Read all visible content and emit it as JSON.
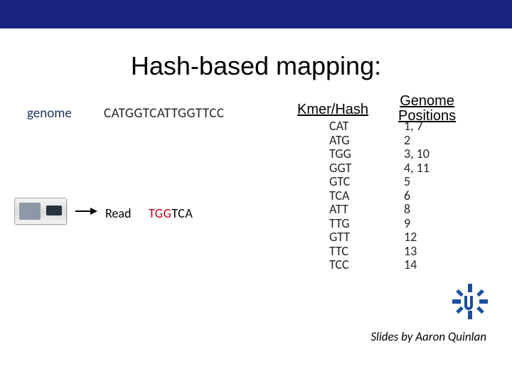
{
  "topbar_color": "#1a237e",
  "title": "Hash-based mapping:",
  "genome_label": "genome",
  "genome_seq": "CATGGTCATTGGTTCC",
  "read_label": "Read",
  "read_seq_highlight": "TGG",
  "read_seq_rest": "TCA",
  "read_highlight_color": "#c00420",
  "kmer_header": "Kmer/Hash",
  "pos_header_line1": "Genome",
  "pos_header_line2": "Positions",
  "rows": [
    {
      "kmer": "CAT",
      "pos": "1, 7"
    },
    {
      "kmer": "ATG",
      "pos": "2"
    },
    {
      "kmer": "TGG",
      "pos": "3, 10"
    },
    {
      "kmer": "GGT",
      "pos": "4, 11"
    },
    {
      "kmer": "GTC",
      "pos": "5"
    },
    {
      "kmer": "TCA",
      "pos": "6"
    },
    {
      "kmer": "ATT",
      "pos": "8"
    },
    {
      "kmer": "TTG",
      "pos": "9"
    },
    {
      "kmer": "GTT",
      "pos": "12"
    },
    {
      "kmer": "TTC",
      "pos": "13"
    },
    {
      "kmer": "TCC",
      "pos": "14"
    }
  ],
  "credit": "Slides by Aaron Quinlan",
  "logo_color": "#1a4fa0"
}
